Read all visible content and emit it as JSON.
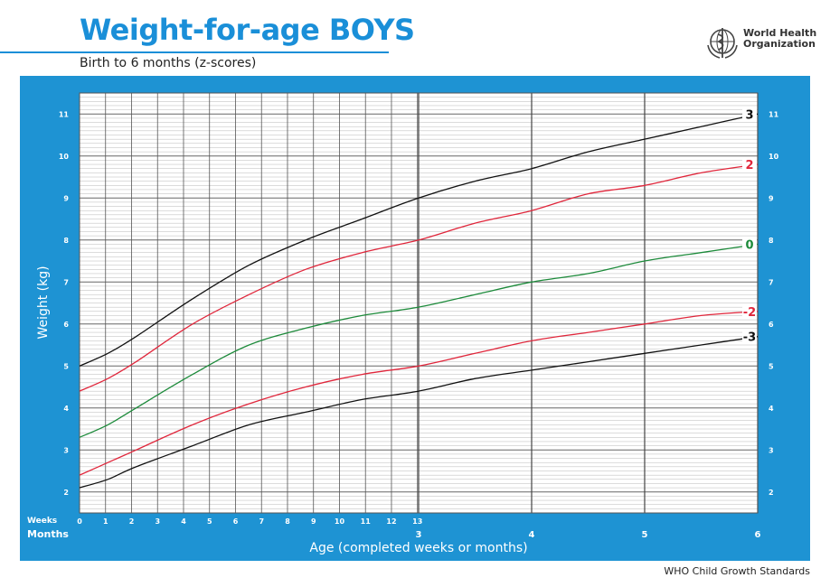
{
  "header": {
    "title": "Weight-for-age BOYS",
    "subtitle": "Birth to 6 months (z-scores)"
  },
  "org": {
    "line1": "World Health",
    "line2": "Organization"
  },
  "footer": {
    "text": "WHO Child Growth Standards"
  },
  "colors": {
    "panel": "#1e93d3",
    "z3": "#111111",
    "z2": "#e0263b",
    "z0": "#1c8a3a"
  },
  "chart_data": {
    "type": "line",
    "ylabel": "Weight (kg)",
    "xlabel": "Age (completed weeks or months)",
    "x_unit": "months",
    "xlim": [
      0,
      6
    ],
    "ylim": [
      1.5,
      11.5
    ],
    "y_ticks": [
      2,
      3,
      4,
      5,
      6,
      7,
      8,
      9,
      10,
      11
    ],
    "weeks_label": "Weeks",
    "months_label": "Months",
    "week_ticks": [
      "0",
      "1",
      "2",
      "3",
      "4",
      "5",
      "6",
      "7",
      "8",
      "9",
      "10",
      "11",
      "12",
      "13"
    ],
    "month_ticks": [
      "3",
      "4",
      "5",
      "6"
    ],
    "grid": true,
    "x": [
      0,
      0.25,
      0.5,
      1,
      1.5,
      2,
      2.5,
      3,
      3.5,
      4,
      4.5,
      5,
      5.5,
      6
    ],
    "series": [
      {
        "name": "3",
        "color": "#111111",
        "values": [
          5.0,
          5.3,
          5.7,
          6.6,
          7.4,
          8.0,
          8.5,
          9.0,
          9.4,
          9.7,
          10.1,
          10.4,
          10.7,
          11.0
        ]
      },
      {
        "name": "2",
        "color": "#e0263b",
        "values": [
          4.4,
          4.7,
          5.1,
          6.0,
          6.7,
          7.3,
          7.7,
          8.0,
          8.4,
          8.7,
          9.1,
          9.3,
          9.6,
          9.8
        ]
      },
      {
        "name": "0",
        "color": "#1c8a3a",
        "values": [
          3.3,
          3.6,
          4.0,
          4.8,
          5.5,
          5.9,
          6.2,
          6.4,
          6.7,
          7.0,
          7.2,
          7.5,
          7.7,
          7.9
        ]
      },
      {
        "name": "-2",
        "color": "#e0263b",
        "values": [
          2.4,
          2.7,
          3.0,
          3.6,
          4.1,
          4.5,
          4.8,
          5.0,
          5.3,
          5.6,
          5.8,
          6.0,
          6.2,
          6.3
        ]
      },
      {
        "name": "-3",
        "color": "#111111",
        "values": [
          2.1,
          2.3,
          2.6,
          3.1,
          3.6,
          3.9,
          4.2,
          4.4,
          4.7,
          4.9,
          5.1,
          5.3,
          5.5,
          5.7
        ]
      }
    ]
  }
}
